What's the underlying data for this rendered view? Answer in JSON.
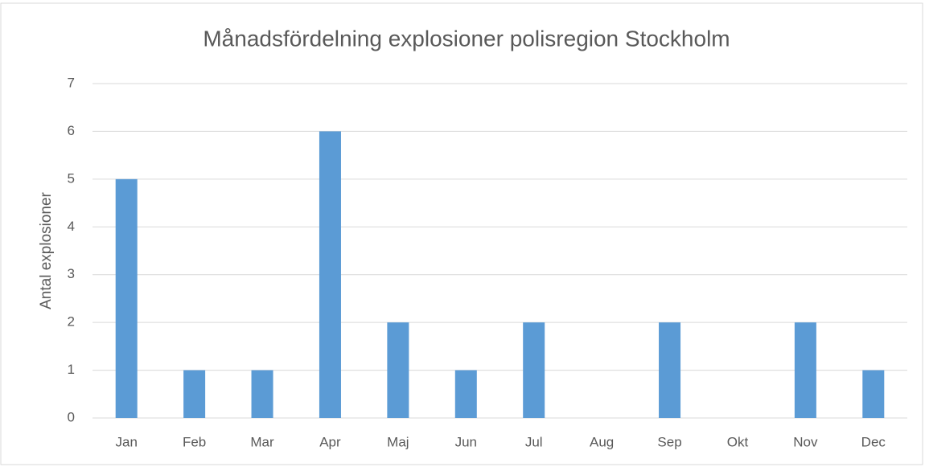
{
  "chart_data": {
    "type": "bar",
    "title": "Månadsfördelning explosioner polisregion Stockholm",
    "y_label": "Antal explosioner",
    "categories": [
      "Jan",
      "Feb",
      "Mar",
      "Apr",
      "Maj",
      "Jun",
      "Jul",
      "Aug",
      "Sep",
      "Okt",
      "Nov",
      "Dec"
    ],
    "values": [
      5,
      1,
      1,
      6,
      2,
      1,
      2,
      0,
      2,
      0,
      2,
      1
    ],
    "color": "#5b9bd5",
    "ylim": [
      0,
      7
    ],
    "yticks": [
      0,
      1,
      2,
      3,
      4,
      5,
      6,
      7
    ],
    "grid": true
  }
}
